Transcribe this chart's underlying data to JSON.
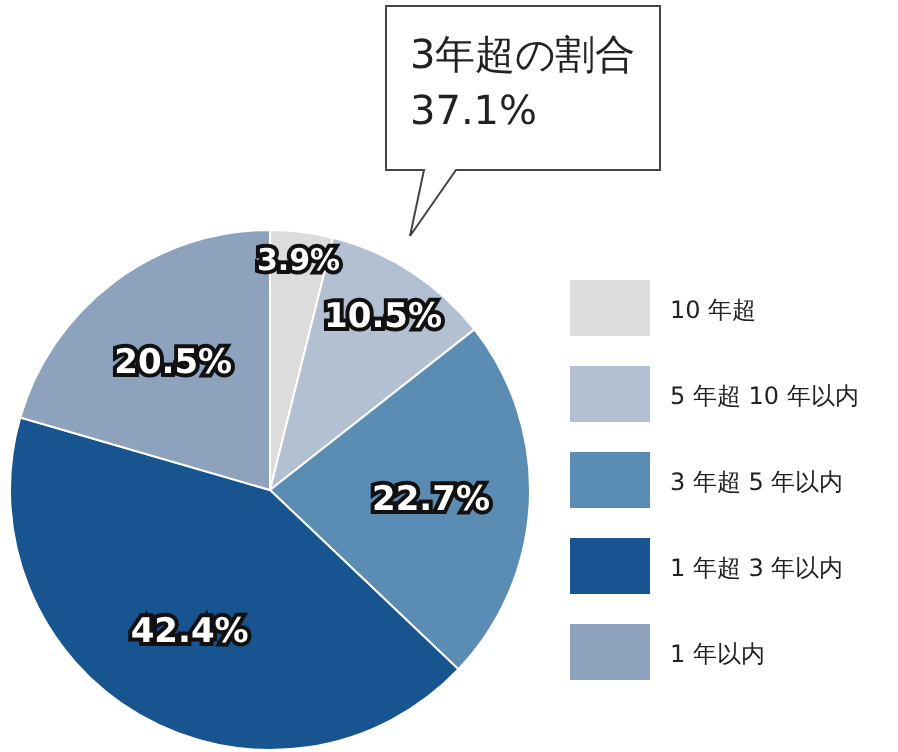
{
  "chart_data": {
    "type": "pie",
    "categories": [
      "10 年超",
      "5 年超 10 年以内",
      "3 年超 5 年以内",
      "1 年超 3 年以内",
      "1 年以内"
    ],
    "values": [
      3.9,
      10.5,
      22.7,
      42.4,
      20.5
    ],
    "colors": [
      "#dcdcdc",
      "#b3c0d2",
      "#5a8cb4",
      "#175490",
      "#8da2bd"
    ],
    "value_labels": [
      "3.9%",
      "10.5%",
      "22.7%",
      "42.4%",
      "20.5%"
    ],
    "legend": "right",
    "annotations": [
      "3年超の割合\n37.1%"
    ]
  }
}
